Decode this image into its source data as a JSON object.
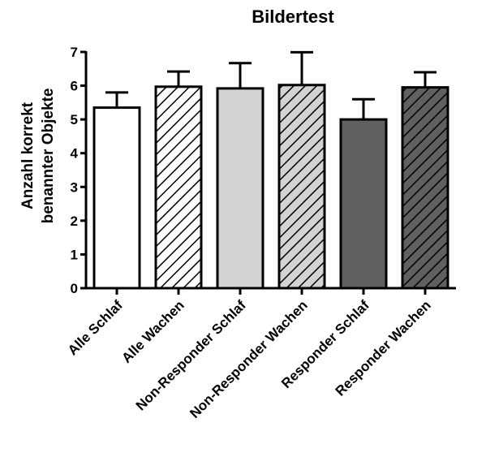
{
  "chart_data": {
    "type": "bar",
    "title": "Bildertest",
    "ylabel": [
      "Anzahl korrekt",
      "benannter Objekte"
    ],
    "xlabel": "",
    "categories": [
      "Alle Schlaf",
      "Alle Wachen",
      "Non-Responder Schlaf",
      "Non-Responder Wachen",
      "Responder Schlaf",
      "Responder Wachen"
    ],
    "values": [
      5.35,
      5.97,
      5.92,
      6.02,
      5.0,
      5.95
    ],
    "error_upper": [
      0.45,
      0.45,
      0.75,
      0.97,
      0.6,
      0.45
    ],
    "ylim": [
      0,
      7
    ],
    "yticks": [
      "0",
      "1",
      "2",
      "3",
      "4",
      "5",
      "6",
      "7"
    ],
    "grid": false,
    "bar_fills": [
      "#ffffff",
      "#ffffff",
      "#d3d3d3",
      "#d3d3d3",
      "#606060",
      "#606060"
    ],
    "bar_hatched": [
      false,
      true,
      false,
      true,
      false,
      true
    ]
  }
}
